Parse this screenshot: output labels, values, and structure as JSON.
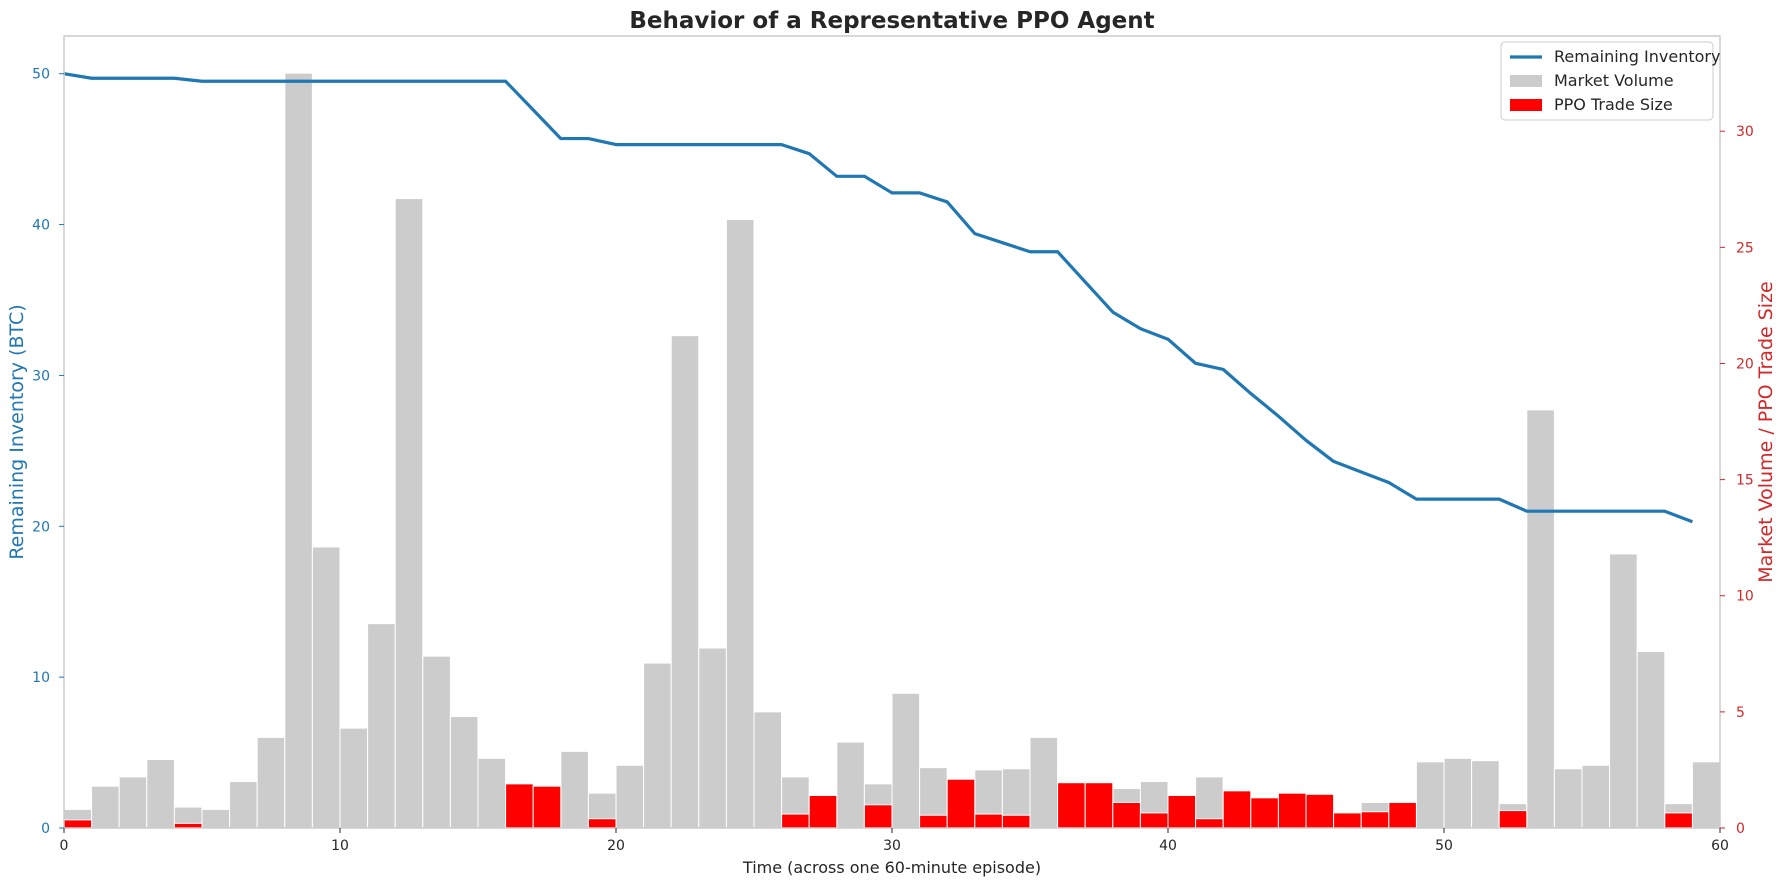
{
  "chart_data": {
    "type": "bar",
    "title": "Behavior of a Representative PPO Agent",
    "xlabel": "Time (across one 60-minute episode)",
    "ylabel_left": "Remaining Inventory (BTC)",
    "ylabel_right": "Market Volume / PPO Trade Size",
    "xlim": [
      0,
      60
    ],
    "ylim_left": [
      0,
      52.5
    ],
    "ylim_right": [
      0,
      34.1
    ],
    "x_ticks": [
      0,
      10,
      20,
      30,
      40,
      50,
      60
    ],
    "y_ticks_left": [
      0,
      10,
      20,
      30,
      40,
      50
    ],
    "y_ticks_right": [
      0,
      5,
      10,
      15,
      20,
      25,
      30
    ],
    "grid": false,
    "legend_placement": "top-right",
    "colors": {
      "inventory": "#1f77b4",
      "market_volume": "#cccccc",
      "ppo_trade": "#ff0000",
      "left_axis_text": "#1f77b4",
      "right_axis_text": "#d62728"
    },
    "series": [
      {
        "name": "Remaining Inventory",
        "kind": "line",
        "axis": "left",
        "x": [
          0,
          1,
          2,
          3,
          4,
          5,
          6,
          7,
          8,
          9,
          10,
          11,
          12,
          13,
          14,
          15,
          16,
          17,
          18,
          19,
          20,
          21,
          22,
          23,
          24,
          25,
          26,
          27,
          28,
          29,
          30,
          31,
          32,
          33,
          34,
          35,
          36,
          37,
          38,
          39,
          40,
          41,
          42,
          43,
          44,
          45,
          46,
          47,
          48,
          49,
          50,
          51,
          52,
          53,
          54,
          55,
          56,
          57,
          58,
          59
        ],
        "values": [
          50.0,
          49.7,
          49.7,
          49.7,
          49.7,
          49.5,
          49.5,
          49.5,
          49.5,
          49.5,
          49.5,
          49.5,
          49.5,
          49.5,
          49.5,
          49.5,
          49.5,
          47.6,
          45.7,
          45.7,
          45.3,
          45.3,
          45.3,
          45.3,
          45.3,
          45.3,
          45.3,
          44.7,
          43.2,
          43.2,
          42.1,
          42.1,
          41.5,
          39.4,
          38.8,
          38.2,
          38.2,
          36.2,
          34.2,
          33.1,
          32.4,
          30.8,
          30.4,
          28.8,
          27.3,
          25.7,
          24.3,
          23.6,
          22.9,
          21.8,
          21.8,
          21.8,
          21.8,
          21.0,
          21.0,
          21.0,
          21.0,
          21.0,
          21.0,
          20.3
        ]
      },
      {
        "name": "Market Volume",
        "kind": "bar",
        "axis": "right",
        "x": [
          0,
          1,
          2,
          3,
          4,
          5,
          6,
          7,
          8,
          9,
          10,
          11,
          12,
          13,
          14,
          15,
          16,
          17,
          18,
          19,
          20,
          21,
          22,
          23,
          24,
          25,
          26,
          27,
          28,
          29,
          30,
          31,
          32,
          33,
          34,
          35,
          36,
          37,
          38,
          39,
          40,
          41,
          42,
          43,
          44,
          45,
          46,
          47,
          48,
          49,
          50,
          51,
          52,
          53,
          54,
          55,
          56,
          57,
          58,
          59
        ],
        "values": [
          0.8,
          1.8,
          2.2,
          2.95,
          0.9,
          0.8,
          2.0,
          3.9,
          32.5,
          12.1,
          4.3,
          8.8,
          27.1,
          7.4,
          4.8,
          3.0,
          0.0,
          0.0,
          3.3,
          1.5,
          2.7,
          7.1,
          21.2,
          7.75,
          26.2,
          5.0,
          2.2,
          0.0,
          3.7,
          1.9,
          5.8,
          2.6,
          0.0,
          2.5,
          2.55,
          3.9,
          0.0,
          0.0,
          1.7,
          2.0,
          0.0,
          2.2,
          0.0,
          0.0,
          0.0,
          0.0,
          0.0,
          1.1,
          0.0,
          2.85,
          3.0,
          2.9,
          1.05,
          18.0,
          2.55,
          2.7,
          11.8,
          7.6,
          1.05,
          2.85
        ]
      },
      {
        "name": "PPO Trade Size",
        "kind": "bar",
        "axis": "right",
        "x": [
          0,
          1,
          2,
          3,
          4,
          5,
          6,
          7,
          8,
          9,
          10,
          11,
          12,
          13,
          14,
          15,
          16,
          17,
          18,
          19,
          20,
          21,
          22,
          23,
          24,
          25,
          26,
          27,
          28,
          29,
          30,
          31,
          32,
          33,
          34,
          35,
          36,
          37,
          38,
          39,
          40,
          41,
          42,
          43,
          44,
          45,
          46,
          47,
          48,
          49,
          50,
          51,
          52,
          53,
          54,
          55,
          56,
          57,
          58,
          59
        ],
        "values": [
          0.35,
          0,
          0,
          0,
          0.2,
          0,
          0,
          0,
          0,
          0,
          0,
          0,
          0,
          0,
          0,
          0,
          1.9,
          1.8,
          0,
          0.4,
          0,
          0,
          0,
          0,
          0,
          0,
          0.6,
          1.4,
          0,
          1.0,
          0,
          0.55,
          2.1,
          0.6,
          0.55,
          0,
          1.95,
          1.95,
          1.1,
          0.65,
          1.4,
          0.4,
          1.6,
          1.3,
          1.5,
          1.45,
          0.65,
          0.7,
          1.1,
          0,
          0,
          0,
          0.75,
          0,
          0,
          0,
          0,
          0,
          0.65,
          0
        ]
      }
    ]
  }
}
